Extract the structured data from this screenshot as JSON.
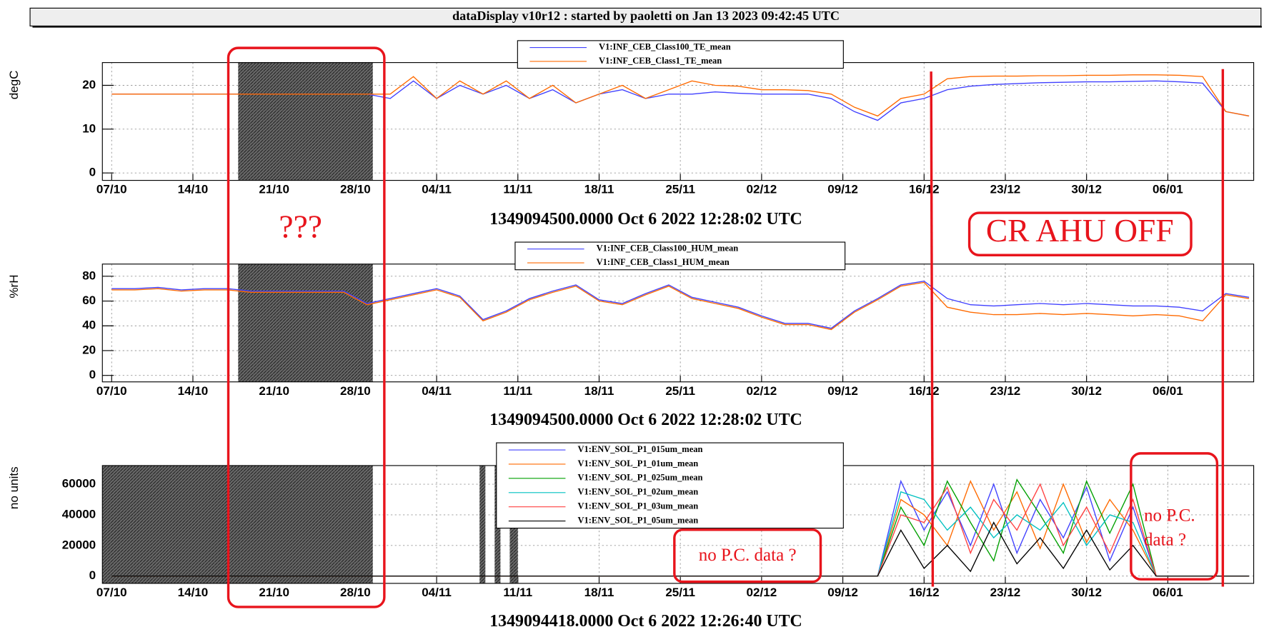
{
  "header": {
    "title": "dataDisplay v10r12 : started by paoletti on Jan 13 2023 09:42:45 UTC"
  },
  "annotations": {
    "question": "???",
    "ahu": "CR AHU OFF",
    "pc_data_1": "no P.C. data ?",
    "pc_data_2": [
      "no P.C.",
      "data ?"
    ]
  },
  "chart_data": [
    {
      "type": "line",
      "x_label": "1349094500.0000 Oct 6 2022 12:28:02 UTC",
      "y_label": "degC",
      "grid": true,
      "xlim": [
        -0.8,
        98.4
      ],
      "ylim": [
        -1.7,
        25.2
      ],
      "yticks": [
        0,
        10,
        20
      ],
      "xticks": [
        {
          "value": 0,
          "label": "07/10"
        },
        {
          "value": 7,
          "label": "14/10"
        },
        {
          "value": 14,
          "label": "21/10"
        },
        {
          "value": 21,
          "label": "28/10"
        },
        {
          "value": 28,
          "label": "04/11"
        },
        {
          "value": 35,
          "label": "11/11"
        },
        {
          "value": 42,
          "label": "18/11"
        },
        {
          "value": 49,
          "label": "25/11"
        },
        {
          "value": 56,
          "label": "02/12"
        },
        {
          "value": 63,
          "label": "09/12"
        },
        {
          "value": 70,
          "label": "16/12"
        },
        {
          "value": 77,
          "label": "23/12"
        },
        {
          "value": 84,
          "label": "30/12"
        },
        {
          "value": 91,
          "label": "06/01"
        }
      ],
      "shaded": [
        [
          10.9,
          22.5
        ]
      ],
      "x": [
        0,
        2,
        4,
        6,
        8,
        10,
        12,
        14,
        16,
        18,
        20,
        22,
        24,
        26,
        28,
        30,
        32,
        34,
        36,
        38,
        40,
        42,
        44,
        46,
        48,
        50,
        52,
        54,
        56,
        58,
        60,
        62,
        64,
        66,
        68,
        70,
        72,
        74,
        76,
        78,
        80,
        82,
        84,
        86,
        88,
        90,
        92,
        94,
        96,
        98
      ],
      "series": [
        {
          "name": "V1:INF_CEB_Class100_TE_mean",
          "color": "#4040ff",
          "values": [
            18,
            18,
            18,
            18,
            18,
            18,
            18,
            18,
            18,
            18,
            18,
            18,
            17,
            21,
            17,
            20,
            18,
            20,
            17,
            19,
            16,
            18,
            19,
            17,
            18,
            18,
            18.5,
            18.2,
            18,
            18,
            18,
            17,
            14,
            12,
            16,
            17,
            19,
            19.8,
            20.2,
            20.4,
            20.6,
            20.7,
            20.8,
            20.8,
            20.9,
            21,
            20.8,
            20.5,
            14,
            13
          ]
        },
        {
          "name": "V1:INF_CEB_Class1_TE_mean",
          "color": "#ff6a00",
          "values": [
            18,
            18,
            18,
            18,
            18,
            18,
            18,
            18,
            18,
            18,
            18,
            18,
            18,
            22,
            17,
            21,
            18,
            21,
            17,
            20,
            16,
            18,
            20,
            17,
            19,
            21,
            20,
            19.8,
            19,
            19,
            18.8,
            18,
            15,
            13,
            17,
            18,
            21.5,
            22,
            22.1,
            22.1,
            22.2,
            22.2,
            22.3,
            22.3,
            22.4,
            22.4,
            22.3,
            22,
            14,
            13
          ]
        }
      ]
    },
    {
      "type": "line",
      "x_label": "1349094500.0000 Oct 6 2022 12:28:02 UTC",
      "y_label": "%rH",
      "grid": true,
      "xlim": [
        -0.8,
        98.4
      ],
      "ylim": [
        -5.2,
        89.8
      ],
      "yticks": [
        0,
        20,
        40,
        60,
        80
      ],
      "xticks": [
        {
          "value": 0,
          "label": "07/10"
        },
        {
          "value": 7,
          "label": "14/10"
        },
        {
          "value": 14,
          "label": "21/10"
        },
        {
          "value": 21,
          "label": "28/10"
        },
        {
          "value": 28,
          "label": "04/11"
        },
        {
          "value": 35,
          "label": "11/11"
        },
        {
          "value": 42,
          "label": "18/11"
        },
        {
          "value": 49,
          "label": "25/11"
        },
        {
          "value": 56,
          "label": "02/12"
        },
        {
          "value": 63,
          "label": "09/12"
        },
        {
          "value": 70,
          "label": "16/12"
        },
        {
          "value": 77,
          "label": "23/12"
        },
        {
          "value": 84,
          "label": "30/12"
        },
        {
          "value": 91,
          "label": "06/01"
        }
      ],
      "shaded": [
        [
          10.9,
          22.5
        ]
      ],
      "x": [
        0,
        2,
        4,
        6,
        8,
        10,
        12,
        14,
        16,
        18,
        20,
        22,
        24,
        26,
        28,
        30,
        32,
        34,
        36,
        38,
        40,
        42,
        44,
        46,
        48,
        50,
        52,
        54,
        56,
        58,
        60,
        62,
        64,
        66,
        68,
        70,
        72,
        74,
        76,
        78,
        80,
        82,
        84,
        86,
        88,
        90,
        92,
        94,
        96,
        98
      ],
      "series": [
        {
          "name": "V1:INF_CEB_Class100_HUM_mean",
          "color": "#4040ff",
          "values": [
            70,
            70,
            71,
            69,
            70,
            70,
            68,
            68,
            68,
            68,
            68,
            58,
            62,
            66,
            70,
            64,
            45,
            52,
            62,
            68,
            73,
            61,
            58,
            66,
            73,
            63,
            59,
            55,
            48,
            42,
            42,
            38,
            52,
            62,
            73,
            76,
            62,
            57,
            56,
            57,
            58,
            57,
            58,
            57,
            56,
            56,
            55,
            52,
            66,
            63
          ]
        },
        {
          "name": "V1:INF_CEB_Class1_HUM_mean",
          "color": "#ff6a00",
          "values": [
            69,
            69,
            70,
            68,
            69,
            69,
            67,
            67,
            67,
            67,
            67,
            57,
            61,
            65,
            69,
            63,
            44,
            51,
            61,
            67,
            72,
            60,
            57,
            65,
            72,
            62,
            58,
            54,
            47,
            41,
            41,
            37,
            51,
            61,
            72,
            75,
            55,
            51,
            49,
            49,
            50,
            49,
            50,
            49,
            48,
            49,
            48,
            44,
            65,
            62
          ]
        }
      ]
    },
    {
      "type": "line",
      "x_label": "1349094418.0000 Oct 6 2022 12:26:40 UTC",
      "y_label": "no units",
      "grid": true,
      "xlim": [
        -0.8,
        98.4
      ],
      "ylim": [
        -4800,
        72200
      ],
      "yticks": [
        0,
        20000,
        40000,
        60000
      ],
      "xticks": [
        {
          "value": 0,
          "label": "07/10"
        },
        {
          "value": 7,
          "label": "14/10"
        },
        {
          "value": 14,
          "label": "21/10"
        },
        {
          "value": 21,
          "label": "28/10"
        },
        {
          "value": 28,
          "label": "04/11"
        },
        {
          "value": 35,
          "label": "11/11"
        },
        {
          "value": 42,
          "label": "18/11"
        },
        {
          "value": 49,
          "label": "25/11"
        },
        {
          "value": 56,
          "label": "02/12"
        },
        {
          "value": 63,
          "label": "09/12"
        },
        {
          "value": 70,
          "label": "16/12"
        },
        {
          "value": 77,
          "label": "23/12"
        },
        {
          "value": 84,
          "label": "30/12"
        },
        {
          "value": 91,
          "label": "06/01"
        }
      ],
      "shaded": [
        [
          -0.8,
          22.5
        ],
        [
          31.7,
          32.2
        ],
        [
          33.0,
          33.5
        ],
        [
          34.3,
          35.0
        ]
      ],
      "x": [
        0,
        2,
        4,
        6,
        8,
        10,
        12,
        14,
        16,
        18,
        20,
        22,
        24,
        26,
        28,
        30,
        32,
        34,
        36,
        38,
        40,
        42,
        44,
        46,
        48,
        50,
        52,
        54,
        56,
        58,
        60,
        62,
        64,
        66,
        68,
        70,
        72,
        74,
        76,
        78,
        80,
        82,
        84,
        86,
        88,
        90,
        92,
        94,
        96,
        98
      ],
      "series": [
        {
          "name": "V1:ENV_SOL_P1_015um_mean",
          "color": "#4040ff",
          "values": [
            0,
            0,
            0,
            0,
            0,
            0,
            0,
            0,
            0,
            0,
            0,
            0,
            0,
            0,
            0,
            0,
            0,
            0,
            0,
            0,
            0,
            0,
            0,
            0,
            0,
            0,
            0,
            0,
            0,
            0,
            0,
            0,
            0,
            0,
            62000,
            30000,
            55000,
            20000,
            60000,
            15000,
            50000,
            25000,
            58000,
            10000,
            45000,
            0,
            0,
            0,
            0,
            0
          ]
        },
        {
          "name": "V1:ENV_SOL_P1_01um_mean",
          "color": "#ff6a00",
          "values": [
            0,
            0,
            0,
            0,
            0,
            0,
            0,
            0,
            0,
            0,
            0,
            0,
            0,
            0,
            0,
            0,
            0,
            0,
            0,
            0,
            0,
            0,
            0,
            0,
            0,
            0,
            0,
            0,
            0,
            0,
            0,
            0,
            0,
            0,
            50000,
            40000,
            20000,
            62000,
            30000,
            55000,
            18000,
            60000,
            22000,
            50000,
            30000,
            0,
            0,
            0,
            0,
            0
          ]
        },
        {
          "name": "V1:ENV_SOL_P1_025um_mean",
          "color": "#00a000",
          "values": [
            0,
            0,
            0,
            0,
            0,
            0,
            0,
            0,
            0,
            0,
            0,
            0,
            0,
            0,
            0,
            0,
            0,
            0,
            0,
            0,
            0,
            0,
            0,
            0,
            0,
            0,
            0,
            0,
            0,
            0,
            0,
            0,
            0,
            0,
            45000,
            20000,
            62000,
            35000,
            10000,
            63000,
            40000,
            15000,
            62000,
            28000,
            60000,
            0,
            0,
            0,
            0,
            0
          ]
        },
        {
          "name": "V1:ENV_SOL_P1_02um_mean",
          "color": "#00c0c0",
          "values": [
            0,
            0,
            0,
            0,
            0,
            0,
            0,
            0,
            0,
            0,
            0,
            0,
            0,
            0,
            0,
            0,
            0,
            0,
            0,
            0,
            0,
            0,
            0,
            0,
            0,
            0,
            0,
            0,
            0,
            0,
            0,
            0,
            0,
            0,
            55000,
            50000,
            30000,
            45000,
            25000,
            40000,
            30000,
            48000,
            20000,
            40000,
            35000,
            0,
            0,
            0,
            0,
            0
          ]
        },
        {
          "name": "V1:ENV_SOL_P1_03um_mean",
          "color": "#ff4040",
          "values": [
            0,
            0,
            0,
            0,
            0,
            0,
            0,
            0,
            0,
            0,
            0,
            0,
            0,
            0,
            0,
            0,
            0,
            0,
            0,
            0,
            0,
            0,
            0,
            0,
            0,
            0,
            0,
            0,
            0,
            0,
            0,
            0,
            0,
            0,
            40000,
            35000,
            58000,
            15000,
            50000,
            30000,
            60000,
            20000,
            45000,
            15000,
            50000,
            0,
            0,
            0,
            0,
            0
          ]
        },
        {
          "name": "V1:ENV_SOL_P1_05um_mean",
          "color": "#000000",
          "values": [
            0,
            0,
            0,
            0,
            0,
            0,
            0,
            0,
            0,
            0,
            0,
            0,
            0,
            0,
            0,
            0,
            0,
            0,
            0,
            0,
            0,
            0,
            0,
            0,
            0,
            0,
            0,
            0,
            0,
            0,
            0,
            0,
            0,
            0,
            30000,
            5000,
            20000,
            3000,
            35000,
            8000,
            25000,
            5000,
            30000,
            4000,
            20000,
            0,
            0,
            0,
            0,
            0
          ]
        }
      ]
    }
  ]
}
